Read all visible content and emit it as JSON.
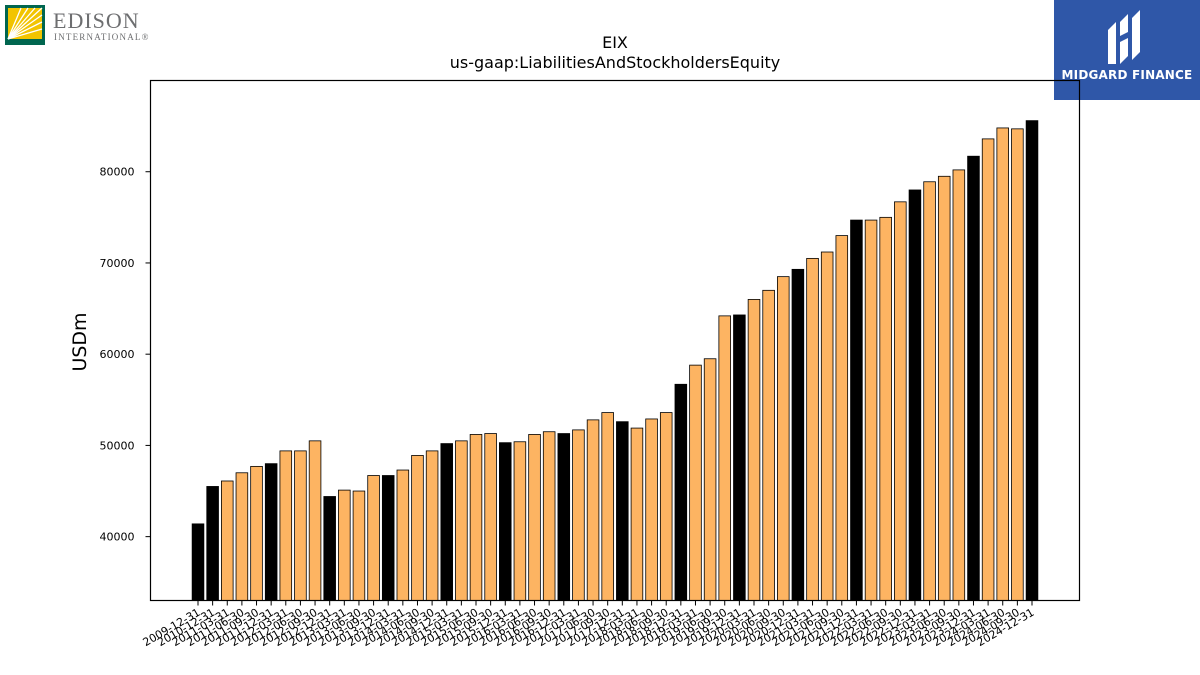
{
  "logos": {
    "left_brand": "EDISON",
    "left_sub": "INTERNATIONAL®",
    "right_brand": "MIDGARD FINANCE"
  },
  "colors": {
    "highlight_bar": "#000000",
    "normal_bar": "#fdb462",
    "bar_edge": "#000000",
    "midgard_bg": "#2f57a8",
    "edison_green": "#00664f",
    "edison_yellow": "#f2c400"
  },
  "chart_data": {
    "type": "bar",
    "title": "EIX",
    "subtitle": "us-gaap:LiabilitiesAndStockholdersEquity",
    "xlabel": "",
    "ylabel": "USDm",
    "ylim": [
      33000,
      90000
    ],
    "yticks": [
      40000,
      50000,
      60000,
      70000,
      80000
    ],
    "grid": false,
    "categories": [
      "2009-12-31",
      "2010-12-31",
      "2011-03-31",
      "2011-06-30",
      "2011-09-30",
      "2011-12-31",
      "2012-03-31",
      "2012-06-30",
      "2012-09-30",
      "2012-12-31",
      "2013-03-31",
      "2013-06-30",
      "2013-09-30",
      "2013-12-31",
      "2014-03-31",
      "2014-06-30",
      "2014-09-30",
      "2014-12-31",
      "2015-03-31",
      "2015-06-30",
      "2015-09-30",
      "2015-12-31",
      "2016-03-31",
      "2016-06-30",
      "2016-09-30",
      "2016-12-31",
      "2017-03-31",
      "2017-06-30",
      "2017-09-30",
      "2017-12-31",
      "2018-03-31",
      "2018-06-30",
      "2018-09-30",
      "2018-12-31",
      "2019-03-31",
      "2019-06-30",
      "2019-09-30",
      "2019-12-31",
      "2020-03-31",
      "2020-06-30",
      "2020-09-30",
      "2020-12-31",
      "2021-03-31",
      "2021-06-30",
      "2021-09-30",
      "2021-12-31",
      "2022-03-31",
      "2022-06-30",
      "2022-09-30",
      "2022-12-31",
      "2023-03-31",
      "2023-06-30",
      "2023-09-30",
      "2023-12-31",
      "2024-03-31",
      "2024-06-30",
      "2024-09-30",
      "2024-12-31"
    ],
    "values": [
      41400,
      45500,
      46100,
      47000,
      47700,
      48000,
      49400,
      49400,
      50500,
      44400,
      45100,
      45000,
      46700,
      46700,
      47300,
      48900,
      49400,
      50200,
      50500,
      51200,
      51300,
      50300,
      50400,
      51200,
      51500,
      51300,
      51700,
      52800,
      53600,
      52600,
      51900,
      52900,
      53600,
      56700,
      58800,
      59500,
      64200,
      64300,
      66000,
      67000,
      68500,
      69300,
      70500,
      71200,
      73000,
      74700,
      74700,
      75000,
      76700,
      78000,
      78900,
      79500,
      80200,
      81700,
      83600,
      84800,
      84700,
      85600
    ],
    "highlight": [
      true,
      true,
      false,
      false,
      false,
      true,
      false,
      false,
      false,
      true,
      false,
      false,
      false,
      true,
      false,
      false,
      false,
      true,
      false,
      false,
      false,
      true,
      false,
      false,
      false,
      true,
      false,
      false,
      false,
      true,
      false,
      false,
      false,
      true,
      false,
      false,
      false,
      true,
      false,
      false,
      false,
      true,
      false,
      false,
      false,
      true,
      false,
      false,
      false,
      true,
      false,
      false,
      false,
      true,
      false,
      false,
      false,
      true
    ]
  }
}
